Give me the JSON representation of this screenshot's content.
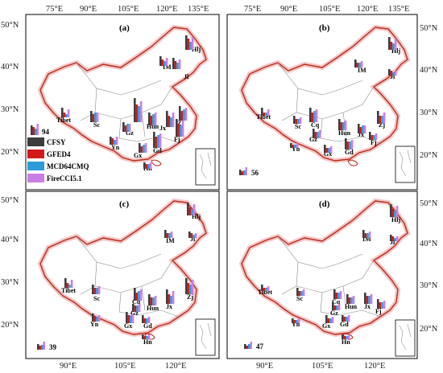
{
  "panels": [
    {
      "label": "(a)",
      "scale_value": "94",
      "top_axis": [
        "75°E",
        "90°E",
        "105°E",
        "120°E",
        "135°E"
      ],
      "bottom_axis": [],
      "lat_labels": [
        "50°N",
        "40°N",
        "30°N",
        "20°N"
      ],
      "lat_side": "left",
      "provinces": [
        "Hlj",
        "Jl",
        "IM",
        "Tibet",
        "Sc",
        "Gz",
        "Hun",
        "Jx",
        "Fj",
        "Yn",
        "Gx",
        "Gd",
        "Hn",
        "Zj"
      ]
    },
    {
      "label": "(b)",
      "scale_value": "56",
      "top_axis": [
        "75°E",
        "90°E",
        "105°E",
        "120°E",
        "135°E"
      ],
      "bottom_axis": [],
      "lat_labels": [
        "50°N",
        "40°N",
        "30°N",
        "20°N"
      ],
      "lat_side": "right",
      "provinces": [
        "Hlj",
        "IM",
        "Jl",
        "Tibet",
        "Sc",
        "Cq",
        "Gz",
        "Hun",
        "Jx",
        "Zj",
        "Yn",
        "Gx",
        "Gd",
        "Fj"
      ]
    },
    {
      "label": "(c)",
      "scale_value": "39",
      "top_axis": [],
      "bottom_axis": [
        "90°E",
        "105°E",
        "120°E"
      ],
      "lat_labels": [
        "50°N",
        "40°N",
        "30°N",
        "20°N"
      ],
      "lat_side": "left",
      "provinces": [
        "Hlj",
        "IM",
        "Jl",
        "Tibet",
        "Sc",
        "Cq",
        "Gz",
        "Hun",
        "Jx",
        "Zj",
        "Yn",
        "Gx",
        "Gd",
        "Hn"
      ]
    },
    {
      "label": "(d)",
      "scale_value": "47",
      "top_axis": [],
      "bottom_axis": [
        "90°E",
        "105°E",
        "120°E"
      ],
      "lat_labels": [
        "50°N",
        "40°N",
        "30°N",
        "20°N"
      ],
      "lat_side": "right",
      "provinces": [
        "Hlj",
        "IM",
        "Jl",
        "Tibet",
        "Sc",
        "Cq",
        "Gz",
        "Hun",
        "Jx",
        "Fj",
        "Yn",
        "Gx",
        "Gd",
        "Hn"
      ]
    }
  ],
  "legend": [
    {
      "name": "CFSY",
      "color": "#3d3d3d"
    },
    {
      "name": "GFED4",
      "color": "#d21a1a"
    },
    {
      "name": "MCD64CMQ",
      "color": "#2a9ad8"
    },
    {
      "name": "FireCCI5.1",
      "color": "#c97ee6"
    }
  ],
  "colors": {
    "boundary": "#b82b1a",
    "province_lines": "#888888",
    "halo": "#f3c6c6"
  }
}
